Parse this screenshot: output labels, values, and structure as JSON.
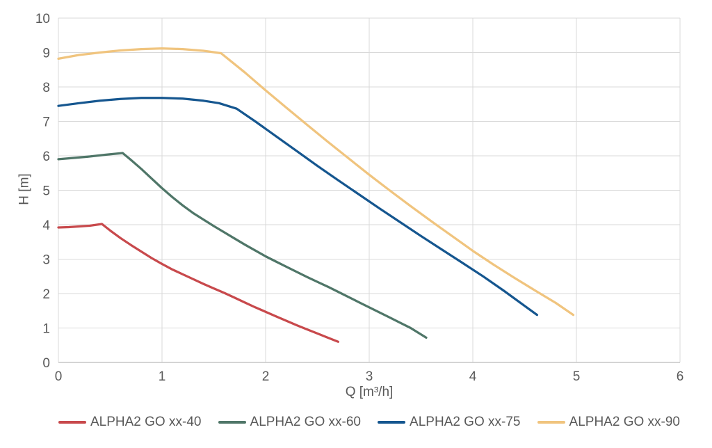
{
  "chart": {
    "background": "#FFFFFF",
    "text_color": "#595959",
    "grid_color": "#D9D9D9",
    "axis_line_color": "#C6C6C6"
  },
  "chart_data": {
    "type": "line",
    "title": "",
    "xlabel": "Q [m³/h]",
    "ylabel": "H [m]",
    "xlim": [
      0,
      6
    ],
    "ylim": [
      0,
      10
    ],
    "x_ticks": [
      0,
      1,
      2,
      3,
      4,
      5,
      6
    ],
    "y_ticks": [
      0,
      1,
      2,
      3,
      4,
      5,
      6,
      7,
      8,
      9,
      10
    ],
    "grid": true,
    "legend_position": "bottom",
    "series": [
      {
        "name": "ALPHA2 GO xx-40",
        "color": "#C8494C",
        "points": [
          [
            0,
            3.92
          ],
          [
            0.1,
            3.93
          ],
          [
            0.2,
            3.95
          ],
          [
            0.3,
            3.97
          ],
          [
            0.42,
            4.02
          ],
          [
            0.5,
            3.83
          ],
          [
            0.6,
            3.61
          ],
          [
            0.7,
            3.41
          ],
          [
            0.8,
            3.22
          ],
          [
            0.9,
            3.03
          ],
          [
            1.0,
            2.86
          ],
          [
            1.1,
            2.7
          ],
          [
            1.2,
            2.56
          ],
          [
            1.3,
            2.42
          ],
          [
            1.4,
            2.28
          ],
          [
            1.5,
            2.15
          ],
          [
            1.6,
            2.02
          ],
          [
            1.7,
            1.88
          ],
          [
            1.8,
            1.74
          ],
          [
            1.9,
            1.6
          ],
          [
            2.0,
            1.47
          ],
          [
            2.1,
            1.34
          ],
          [
            2.2,
            1.21
          ],
          [
            2.3,
            1.08
          ],
          [
            2.4,
            0.96
          ],
          [
            2.5,
            0.84
          ],
          [
            2.6,
            0.72
          ],
          [
            2.7,
            0.6
          ]
        ]
      },
      {
        "name": "ALPHA2 GO xx-60",
        "color": "#4F7668",
        "points": [
          [
            0,
            5.9
          ],
          [
            0.15,
            5.94
          ],
          [
            0.3,
            5.98
          ],
          [
            0.45,
            6.03
          ],
          [
            0.62,
            6.08
          ],
          [
            0.7,
            5.88
          ],
          [
            0.8,
            5.62
          ],
          [
            0.9,
            5.34
          ],
          [
            1.0,
            5.06
          ],
          [
            1.1,
            4.8
          ],
          [
            1.2,
            4.56
          ],
          [
            1.3,
            4.34
          ],
          [
            1.4,
            4.15
          ],
          [
            1.5,
            3.96
          ],
          [
            1.6,
            3.78
          ],
          [
            1.7,
            3.6
          ],
          [
            1.8,
            3.42
          ],
          [
            1.9,
            3.25
          ],
          [
            2.0,
            3.08
          ],
          [
            2.1,
            2.93
          ],
          [
            2.2,
            2.78
          ],
          [
            2.3,
            2.63
          ],
          [
            2.4,
            2.48
          ],
          [
            2.5,
            2.34
          ],
          [
            2.6,
            2.2
          ],
          [
            2.7,
            2.05
          ],
          [
            2.8,
            1.9
          ],
          [
            2.9,
            1.75
          ],
          [
            3.0,
            1.6
          ],
          [
            3.1,
            1.45
          ],
          [
            3.2,
            1.3
          ],
          [
            3.3,
            1.15
          ],
          [
            3.4,
            1.0
          ],
          [
            3.55,
            0.72
          ]
        ]
      },
      {
        "name": "ALPHA2 GO xx-75",
        "color": "#15568F",
        "points": [
          [
            0,
            7.45
          ],
          [
            0.2,
            7.53
          ],
          [
            0.4,
            7.6
          ],
          [
            0.6,
            7.65
          ],
          [
            0.8,
            7.68
          ],
          [
            1.0,
            7.68
          ],
          [
            1.2,
            7.66
          ],
          [
            1.4,
            7.6
          ],
          [
            1.55,
            7.53
          ],
          [
            1.72,
            7.37
          ],
          [
            1.9,
            7.0
          ],
          [
            2.1,
            6.57
          ],
          [
            2.3,
            6.14
          ],
          [
            2.5,
            5.71
          ],
          [
            2.7,
            5.29
          ],
          [
            2.9,
            4.88
          ],
          [
            3.1,
            4.47
          ],
          [
            3.3,
            4.07
          ],
          [
            3.5,
            3.67
          ],
          [
            3.7,
            3.28
          ],
          [
            3.9,
            2.89
          ],
          [
            4.1,
            2.5
          ],
          [
            4.3,
            2.08
          ],
          [
            4.62,
            1.38
          ]
        ]
      },
      {
        "name": "ALPHA2 GO xx-90",
        "color": "#F0C47E",
        "points": [
          [
            0,
            8.82
          ],
          [
            0.2,
            8.93
          ],
          [
            0.4,
            9.0
          ],
          [
            0.6,
            9.06
          ],
          [
            0.8,
            9.1
          ],
          [
            1.0,
            9.12
          ],
          [
            1.2,
            9.1
          ],
          [
            1.4,
            9.05
          ],
          [
            1.57,
            8.98
          ],
          [
            1.8,
            8.42
          ],
          [
            2.0,
            7.9
          ],
          [
            2.2,
            7.4
          ],
          [
            2.4,
            6.9
          ],
          [
            2.6,
            6.41
          ],
          [
            2.8,
            5.93
          ],
          [
            3.0,
            5.45
          ],
          [
            3.2,
            4.99
          ],
          [
            3.4,
            4.54
          ],
          [
            3.6,
            4.1
          ],
          [
            3.8,
            3.67
          ],
          [
            4.0,
            3.24
          ],
          [
            4.2,
            2.84
          ],
          [
            4.4,
            2.46
          ],
          [
            4.6,
            2.09
          ],
          [
            4.8,
            1.73
          ],
          [
            4.97,
            1.38
          ]
        ]
      }
    ]
  }
}
